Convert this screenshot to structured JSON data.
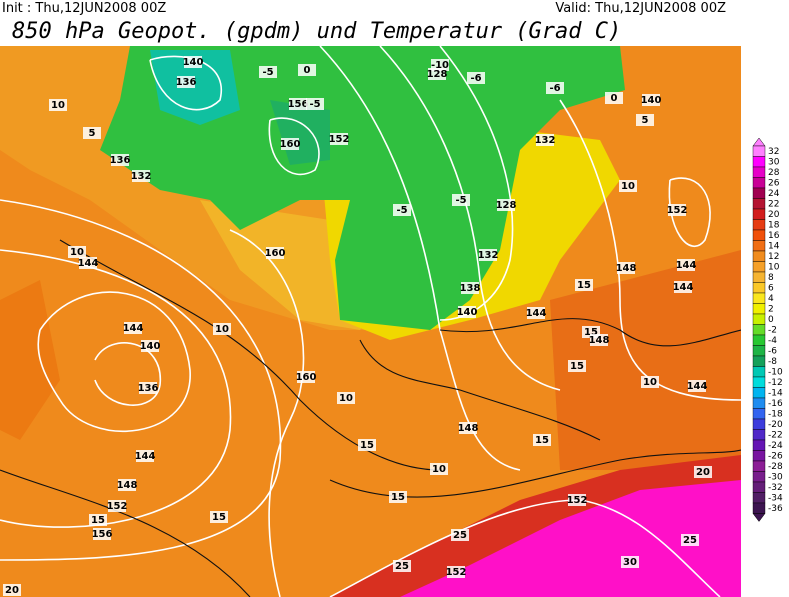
{
  "header": {
    "init": "Init : Thu,12JUN2008 00Z",
    "valid": "Valid: Thu,12JUN2008 00Z",
    "title": "850 hPa Geopot. (gpdm) und Temperatur (Grad C)"
  },
  "colorbar": {
    "labels": [
      32,
      30,
      28,
      26,
      24,
      22,
      20,
      18,
      16,
      14,
      12,
      10,
      8,
      6,
      4,
      2,
      0,
      -2,
      -4,
      -6,
      -8,
      -10,
      -12,
      -14,
      -16,
      -18,
      -20,
      -22,
      -24,
      -26,
      -28,
      -30,
      -32,
      -34,
      -36
    ],
    "colors": [
      "#ff80ff",
      "#ff00ff",
      "#e600c8",
      "#c80096",
      "#a00050",
      "#b41432",
      "#d21e1e",
      "#e63c14",
      "#f0500a",
      "#f06e14",
      "#f08c1e",
      "#f5a028",
      "#f5b432",
      "#fac828",
      "#fae61e",
      "#f0f000",
      "#c8f000",
      "#64dc28",
      "#28c832",
      "#1eb446",
      "#14a05a",
      "#00c8b4",
      "#00dcdc",
      "#00b4f0",
      "#1e8cf0",
      "#3264f0",
      "#3c3cdc",
      "#5028c8",
      "#6414b4",
      "#7814a0",
      "#8c1e96",
      "#781e8c",
      "#641e78",
      "#501e64",
      "#3c1450"
    ]
  },
  "contour_labels": [
    140,
    136,
    -5,
    0,
    -10,
    128,
    -6,
    -6,
    0,
    140,
    5,
    10,
    5,
    136,
    132,
    160,
    156,
    -5,
    152,
    132,
    10,
    152,
    -5,
    -5,
    128,
    160,
    10,
    144,
    132,
    148,
    144,
    15,
    144,
    138,
    140,
    144,
    144,
    140,
    10,
    15,
    148,
    136,
    160,
    10,
    15,
    10,
    144,
    144,
    148,
    152,
    15,
    156,
    15,
    152,
    20,
    25,
    30,
    152,
    20,
    15,
    15,
    25,
    25,
    10,
    148,
    15
  ]
}
